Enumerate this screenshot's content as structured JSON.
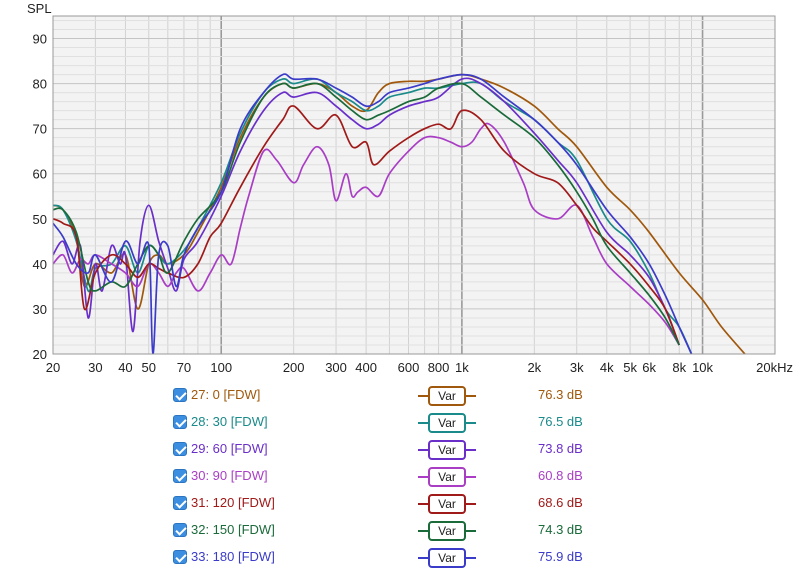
{
  "chart_data": {
    "type": "line",
    "ylabel": "SPL",
    "xscale": "log",
    "xlim": [
      20,
      20000
    ],
    "ylim": [
      20,
      95
    ],
    "grid": true,
    "x_tick_labels": [
      {
        "v": 20,
        "t": "20"
      },
      {
        "v": 30,
        "t": "30"
      },
      {
        "v": 40,
        "t": "40"
      },
      {
        "v": 50,
        "t": "50"
      },
      {
        "v": 70,
        "t": "70"
      },
      {
        "v": 100,
        "t": "100"
      },
      {
        "v": 200,
        "t": "200"
      },
      {
        "v": 300,
        "t": "300"
      },
      {
        "v": 400,
        "t": "400"
      },
      {
        "v": 600,
        "t": "600"
      },
      {
        "v": 800,
        "t": "800"
      },
      {
        "v": 1000,
        "t": "1k"
      },
      {
        "v": 2000,
        "t": "2k"
      },
      {
        "v": 3000,
        "t": "3k"
      },
      {
        "v": 4000,
        "t": "4k"
      },
      {
        "v": 5000,
        "t": "5k"
      },
      {
        "v": 6000,
        "t": "6k"
      },
      {
        "v": 8000,
        "t": "8k"
      },
      {
        "v": 10000,
        "t": "10k"
      },
      {
        "v": 20000,
        "t": "20kHz"
      }
    ],
    "y_ticks": [
      20,
      30,
      40,
      50,
      60,
      70,
      80,
      90
    ],
    "series": [
      {
        "name": "27: 0 [FDW]",
        "color": "#a0580c",
        "avg": "76.3 dB",
        "points": [
          [
            20,
            53
          ],
          [
            22,
            52
          ],
          [
            25,
            46
          ],
          [
            27,
            35
          ],
          [
            30,
            40
          ],
          [
            35,
            38
          ],
          [
            40,
            42
          ],
          [
            45,
            30
          ],
          [
            50,
            40
          ],
          [
            55,
            42
          ],
          [
            60,
            40
          ],
          [
            70,
            42
          ],
          [
            80,
            47
          ],
          [
            100,
            57
          ],
          [
            120,
            68
          ],
          [
            150,
            77
          ],
          [
            180,
            80
          ],
          [
            200,
            79
          ],
          [
            250,
            80
          ],
          [
            300,
            78
          ],
          [
            350,
            75
          ],
          [
            400,
            74
          ],
          [
            450,
            78
          ],
          [
            500,
            80
          ],
          [
            600,
            80.5
          ],
          [
            700,
            80.5
          ],
          [
            800,
            81
          ],
          [
            1000,
            82
          ],
          [
            1200,
            81
          ],
          [
            1500,
            79
          ],
          [
            2000,
            75
          ],
          [
            2500,
            70
          ],
          [
            3000,
            66
          ],
          [
            4000,
            57
          ],
          [
            5000,
            52
          ],
          [
            6000,
            47
          ],
          [
            8000,
            38
          ],
          [
            10000,
            32
          ],
          [
            12000,
            26
          ],
          [
            15000,
            20
          ]
        ]
      },
      {
        "name": "28: 30 [FDW]",
        "color": "#1a8a8a",
        "avg": "76.5 dB",
        "points": [
          [
            20,
            53
          ],
          [
            22,
            52
          ],
          [
            25,
            45
          ],
          [
            28,
            34
          ],
          [
            30,
            39
          ],
          [
            35,
            40
          ],
          [
            40,
            44
          ],
          [
            45,
            38
          ],
          [
            50,
            44
          ],
          [
            55,
            42
          ],
          [
            60,
            40
          ],
          [
            70,
            43
          ],
          [
            80,
            48
          ],
          [
            100,
            58
          ],
          [
            120,
            69
          ],
          [
            150,
            78
          ],
          [
            180,
            81
          ],
          [
            200,
            80
          ],
          [
            250,
            81
          ],
          [
            300,
            78
          ],
          [
            350,
            76
          ],
          [
            400,
            74
          ],
          [
            450,
            75
          ],
          [
            500,
            77
          ],
          [
            600,
            78
          ],
          [
            700,
            79
          ],
          [
            800,
            79
          ],
          [
            1000,
            80
          ],
          [
            1200,
            80
          ],
          [
            1500,
            76
          ],
          [
            2000,
            72
          ],
          [
            2500,
            67
          ],
          [
            3000,
            63
          ],
          [
            4000,
            50
          ],
          [
            5000,
            45
          ],
          [
            6000,
            38
          ],
          [
            7000,
            30
          ],
          [
            8000,
            26
          ],
          [
            9000,
            20
          ]
        ]
      },
      {
        "name": "29: 60 [FDW]",
        "color": "#6a2fc9",
        "avg": "73.8 dB",
        "points": [
          [
            20,
            42
          ],
          [
            22,
            45
          ],
          [
            24,
            40
          ],
          [
            26,
            44
          ],
          [
            28,
            28
          ],
          [
            30,
            40
          ],
          [
            32,
            34
          ],
          [
            35,
            44
          ],
          [
            38,
            40
          ],
          [
            40,
            42
          ],
          [
            43,
            25
          ],
          [
            46,
            45
          ],
          [
            50,
            53
          ],
          [
            55,
            45
          ],
          [
            60,
            39
          ],
          [
            65,
            34
          ],
          [
            70,
            41
          ],
          [
            80,
            45
          ],
          [
            100,
            55
          ],
          [
            120,
            65
          ],
          [
            150,
            74
          ],
          [
            180,
            78
          ],
          [
            200,
            77
          ],
          [
            250,
            78
          ],
          [
            300,
            75
          ],
          [
            350,
            72
          ],
          [
            400,
            70
          ],
          [
            450,
            71
          ],
          [
            500,
            73
          ],
          [
            600,
            75
          ],
          [
            700,
            76
          ],
          [
            800,
            77
          ],
          [
            1000,
            81
          ],
          [
            1200,
            80
          ],
          [
            1500,
            76
          ],
          [
            2000,
            69
          ],
          [
            2500,
            63
          ],
          [
            3000,
            58
          ],
          [
            4000,
            47
          ],
          [
            5000,
            42
          ],
          [
            6000,
            37
          ],
          [
            7000,
            30
          ],
          [
            8000,
            22
          ]
        ]
      },
      {
        "name": "30: 90 [FDW]",
        "color": "#a93ec5",
        "avg": "60.8 dB",
        "points": [
          [
            20,
            40
          ],
          [
            22,
            42
          ],
          [
            24,
            38
          ],
          [
            26,
            41
          ],
          [
            28,
            40
          ],
          [
            30,
            42
          ],
          [
            35,
            40
          ],
          [
            40,
            38
          ],
          [
            45,
            35
          ],
          [
            50,
            40
          ],
          [
            55,
            38
          ],
          [
            60,
            35
          ],
          [
            65,
            38
          ],
          [
            70,
            39
          ],
          [
            80,
            34
          ],
          [
            90,
            38
          ],
          [
            100,
            42
          ],
          [
            110,
            40
          ],
          [
            120,
            48
          ],
          [
            130,
            55
          ],
          [
            150,
            65
          ],
          [
            170,
            63
          ],
          [
            200,
            58
          ],
          [
            220,
            62
          ],
          [
            250,
            66
          ],
          [
            280,
            62
          ],
          [
            300,
            54
          ],
          [
            330,
            60
          ],
          [
            350,
            55
          ],
          [
            370,
            56
          ],
          [
            400,
            57
          ],
          [
            450,
            55
          ],
          [
            500,
            60
          ],
          [
            600,
            65
          ],
          [
            700,
            68
          ],
          [
            800,
            68
          ],
          [
            900,
            67
          ],
          [
            1000,
            66
          ],
          [
            1100,
            67
          ],
          [
            1200,
            70
          ],
          [
            1300,
            71
          ],
          [
            1500,
            67
          ],
          [
            1800,
            58
          ],
          [
            2000,
            52
          ],
          [
            2500,
            50
          ],
          [
            3000,
            53
          ],
          [
            3500,
            46
          ],
          [
            4000,
            40
          ],
          [
            5000,
            35
          ],
          [
            6000,
            31
          ],
          [
            7000,
            27
          ],
          [
            8000,
            22
          ]
        ]
      },
      {
        "name": "31: 120 [FDW]",
        "color": "#a01a1a",
        "avg": "68.6 dB",
        "points": [
          [
            20,
            50
          ],
          [
            22,
            49
          ],
          [
            25,
            46
          ],
          [
            27,
            30
          ],
          [
            30,
            38
          ],
          [
            35,
            42
          ],
          [
            40,
            40
          ],
          [
            45,
            37
          ],
          [
            50,
            40
          ],
          [
            55,
            39
          ],
          [
            60,
            38
          ],
          [
            70,
            37
          ],
          [
            80,
            40
          ],
          [
            90,
            46
          ],
          [
            100,
            49
          ],
          [
            120,
            57
          ],
          [
            150,
            66
          ],
          [
            180,
            72
          ],
          [
            200,
            75
          ],
          [
            250,
            70
          ],
          [
            300,
            73
          ],
          [
            350,
            66
          ],
          [
            400,
            67
          ],
          [
            430,
            62
          ],
          [
            500,
            65
          ],
          [
            600,
            68
          ],
          [
            700,
            70
          ],
          [
            800,
            71
          ],
          [
            900,
            70
          ],
          [
            1000,
            74
          ],
          [
            1200,
            72
          ],
          [
            1500,
            65
          ],
          [
            2000,
            60
          ],
          [
            2500,
            58
          ],
          [
            3000,
            53
          ],
          [
            3500,
            48
          ],
          [
            4000,
            45
          ],
          [
            5000,
            40
          ],
          [
            6000,
            35
          ],
          [
            7000,
            30
          ],
          [
            8000,
            22
          ]
        ]
      },
      {
        "name": "32: 150 [FDW]",
        "color": "#1a6a3a",
        "avg": "74.3 dB",
        "points": [
          [
            20,
            52
          ],
          [
            22,
            52
          ],
          [
            25,
            47
          ],
          [
            28,
            36
          ],
          [
            30,
            34
          ],
          [
            35,
            36
          ],
          [
            40,
            35
          ],
          [
            45,
            40
          ],
          [
            50,
            44
          ],
          [
            55,
            42
          ],
          [
            60,
            38
          ],
          [
            70,
            45
          ],
          [
            80,
            50
          ],
          [
            100,
            56
          ],
          [
            120,
            67
          ],
          [
            150,
            77
          ],
          [
            180,
            80
          ],
          [
            200,
            79
          ],
          [
            250,
            80
          ],
          [
            300,
            77
          ],
          [
            350,
            74
          ],
          [
            400,
            72
          ],
          [
            450,
            73
          ],
          [
            500,
            74
          ],
          [
            600,
            76
          ],
          [
            700,
            77
          ],
          [
            800,
            79
          ],
          [
            1000,
            80
          ],
          [
            1200,
            77
          ],
          [
            1500,
            73
          ],
          [
            2000,
            68
          ],
          [
            2500,
            62
          ],
          [
            3000,
            56
          ],
          [
            3500,
            50
          ],
          [
            4000,
            44
          ],
          [
            5000,
            38
          ],
          [
            6000,
            33
          ],
          [
            7000,
            28
          ],
          [
            8000,
            22
          ]
        ]
      },
      {
        "name": "33: 180 [FDW]",
        "color": "#3b3bc9",
        "avg": "75.9 dB",
        "points": [
          [
            20,
            49
          ],
          [
            22,
            46
          ],
          [
            25,
            40
          ],
          [
            28,
            38
          ],
          [
            30,
            42
          ],
          [
            35,
            36
          ],
          [
            40,
            45
          ],
          [
            45,
            40
          ],
          [
            50,
            44
          ],
          [
            52,
            20
          ],
          [
            55,
            42
          ],
          [
            60,
            44
          ],
          [
            65,
            35
          ],
          [
            70,
            42
          ],
          [
            80,
            48
          ],
          [
            100,
            56
          ],
          [
            120,
            70
          ],
          [
            150,
            78
          ],
          [
            180,
            82
          ],
          [
            200,
            81
          ],
          [
            250,
            81
          ],
          [
            300,
            79
          ],
          [
            350,
            77
          ],
          [
            400,
            75
          ],
          [
            450,
            76
          ],
          [
            500,
            78
          ],
          [
            600,
            79
          ],
          [
            700,
            80
          ],
          [
            800,
            81
          ],
          [
            1000,
            82
          ],
          [
            1200,
            81
          ],
          [
            1500,
            77
          ],
          [
            2000,
            72
          ],
          [
            2500,
            67
          ],
          [
            3000,
            62
          ],
          [
            4000,
            52
          ],
          [
            5000,
            46
          ],
          [
            6000,
            40
          ],
          [
            7000,
            33
          ],
          [
            8000,
            26
          ],
          [
            9000,
            20
          ]
        ]
      }
    ]
  },
  "legend": {
    "swatch_label": "Var",
    "items": [
      {
        "label": "27: 0 [FDW]",
        "value": "76.3 dB",
        "color": "#a0580c"
      },
      {
        "label": "28: 30 [FDW]",
        "value": "76.5 dB",
        "color": "#1a8a8a"
      },
      {
        "label": "29: 60 [FDW]",
        "value": "73.8 dB",
        "color": "#6a2fc9"
      },
      {
        "label": "30: 90 [FDW]",
        "value": "60.8 dB",
        "color": "#a93ec5"
      },
      {
        "label": "31: 120 [FDW]",
        "value": "68.6 dB",
        "color": "#a01a1a"
      },
      {
        "label": "32: 150 [FDW]",
        "value": "74.3 dB",
        "color": "#1a6a3a"
      },
      {
        "label": "33: 180 [FDW]",
        "value": "75.9 dB",
        "color": "#3b3bc9"
      }
    ]
  }
}
